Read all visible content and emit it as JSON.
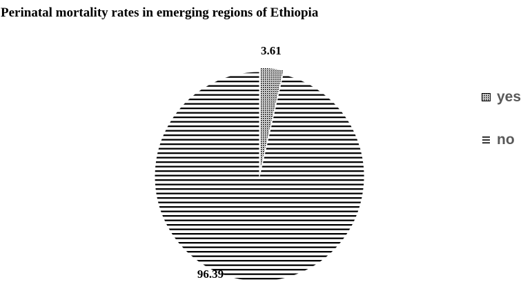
{
  "chart_data": {
    "type": "pie",
    "title": "Perinatal mortality rates in emerging regions of Ethiopia",
    "categories": [
      "yes",
      "no"
    ],
    "values": [
      3.61,
      96.39
    ],
    "data_labels": [
      "3.61",
      "96.39"
    ],
    "legend_placement": "right",
    "patterns": [
      "dotted",
      "horizontal-lines"
    ]
  }
}
